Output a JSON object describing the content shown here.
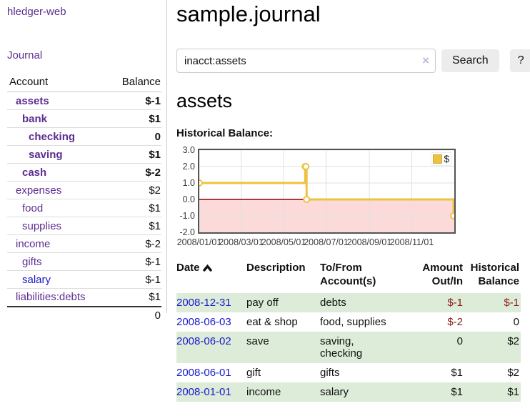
{
  "app": {
    "brand": "hledger-web",
    "nav": {
      "journal": "Journal"
    }
  },
  "sidebar": {
    "header": {
      "account": "Account",
      "balance": "Balance"
    },
    "accounts": [
      {
        "name": "assets",
        "indent": 1,
        "bold": true,
        "balance": "$-1"
      },
      {
        "name": "bank",
        "indent": 2,
        "bold": true,
        "balance": "$1"
      },
      {
        "name": "checking",
        "indent": 3,
        "bold": true,
        "balance": "0"
      },
      {
        "name": "saving",
        "indent": 3,
        "bold": true,
        "balance": "$1"
      },
      {
        "name": "cash",
        "indent": 2,
        "bold": true,
        "balance": "$-2"
      },
      {
        "name": "expenses",
        "indent": 1,
        "bold": false,
        "balance": "$2"
      },
      {
        "name": "food",
        "indent": 2,
        "bold": false,
        "balance": "$1"
      },
      {
        "name": "supplies",
        "indent": 2,
        "bold": false,
        "balance": "$1"
      },
      {
        "name": "income",
        "indent": 1,
        "bold": false,
        "balance": "$-2"
      },
      {
        "name": "gifts",
        "indent": 2,
        "bold": false,
        "balance": "$-1"
      },
      {
        "name": "salary",
        "indent": 2,
        "bold": false,
        "balance": "$-1",
        "link_color": "blue"
      },
      {
        "name": "liabilities:debts",
        "indent": 1,
        "bold": false,
        "balance": "$1"
      }
    ],
    "total": "0"
  },
  "main": {
    "title": "sample.journal",
    "search": {
      "value": "inacct:assets",
      "clear_icon": "×",
      "button_label": "Search",
      "help_label": "?"
    },
    "account_heading": "assets",
    "chart_title": "Historical Balance:"
  },
  "chart_data": {
    "type": "line",
    "step": true,
    "title": "Historical Balance:",
    "series": [
      {
        "name": "$",
        "color": "#edc240",
        "points": [
          [
            "2008-01-01",
            1.0
          ],
          [
            "2008-06-01",
            2.0
          ],
          [
            "2008-06-02",
            2.0
          ],
          [
            "2008-06-03",
            0.0
          ],
          [
            "2008-12-31",
            -1.0
          ]
        ]
      }
    ],
    "x_range": [
      "2008-01-01",
      "2009-01-01"
    ],
    "ylim": [
      -2,
      3
    ],
    "yticks": [
      "3.0",
      "2.0",
      "1.0",
      "0.0",
      "-1.0",
      "-2.0"
    ],
    "xticks": [
      "2008/01/01",
      "2008/03/01",
      "2008/05/01",
      "2008/07/01",
      "2008/09/01",
      "2008/11/01"
    ],
    "legend": {
      "position": "top-right",
      "label": "$"
    },
    "grid": true,
    "negative_region_color": "#fcdada",
    "zero_line_color": "#8b0000"
  },
  "register": {
    "headers": [
      {
        "line1": "Date",
        "line2": "",
        "sorted": "asc"
      },
      {
        "line1": "Description",
        "line2": ""
      },
      {
        "line1": "To/From",
        "line2": "Account(s)"
      },
      {
        "line1": "Amount",
        "line2": "Out/In",
        "align": "right"
      },
      {
        "line1": "Historical",
        "line2": "Balance",
        "align": "right"
      }
    ],
    "rows": [
      {
        "date": "2008-12-31",
        "description": "pay off",
        "accounts": "debts",
        "amount": "$-1",
        "balance": "$-1"
      },
      {
        "date": "2008-06-03",
        "description": "eat & shop",
        "accounts": "food, supplies",
        "amount": "$-2",
        "balance": "0"
      },
      {
        "date": "2008-06-02",
        "description": "save",
        "accounts": "saving, checking",
        "amount": "0",
        "balance": "$2"
      },
      {
        "date": "2008-06-01",
        "description": "gift",
        "accounts": "gifts",
        "amount": "$1",
        "balance": "$2"
      },
      {
        "date": "2008-01-01",
        "description": "income",
        "accounts": "salary",
        "amount": "$1",
        "balance": "$1"
      }
    ]
  },
  "colors": {
    "accent_purple": "#5c2d91",
    "link_blue": "#1a1acd",
    "negative_red": "#8b1a1a",
    "negative_faded_red": "#bd7474",
    "row_stripe_green": "#dcecd8",
    "chart_line_yellow": "#edc240"
  }
}
